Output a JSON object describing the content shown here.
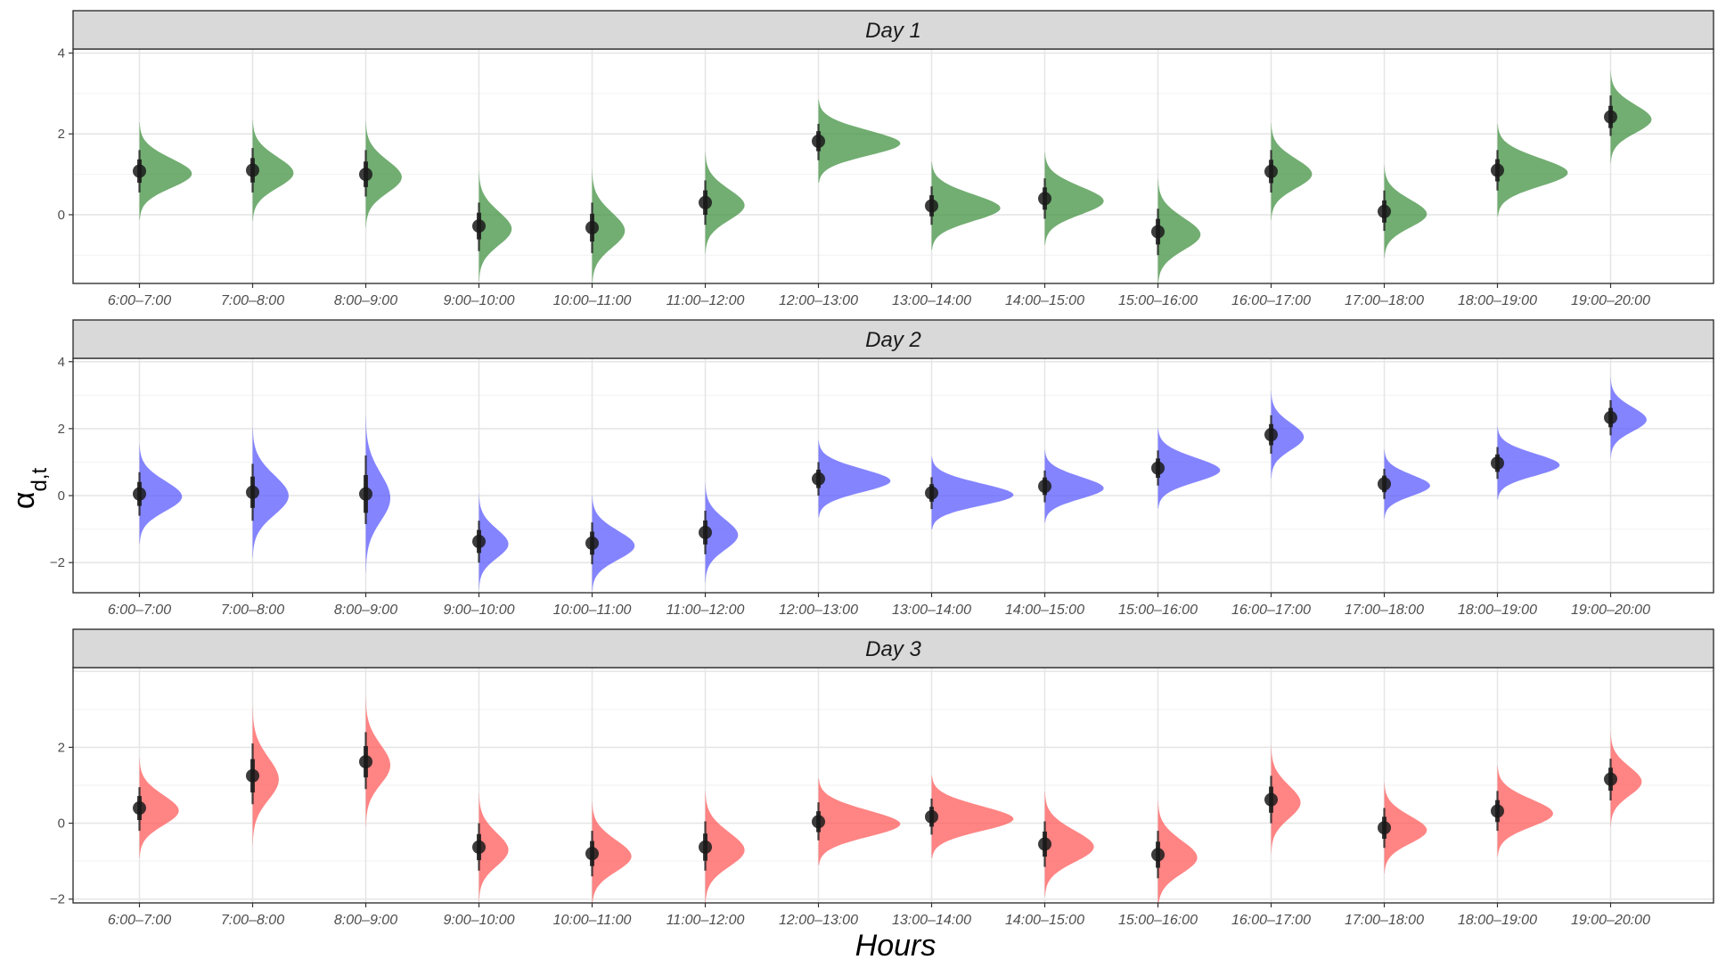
{
  "chart_data": {
    "type": "half-violin",
    "xlabel": "Hours",
    "ylabel": {
      "base": "α",
      "subscript": "d,t"
    },
    "categories": [
      "6:00–7:00",
      "7:00–8:00",
      "8:00–9:00",
      "9:00–10:00",
      "10:00–11:00",
      "11:00–12:00",
      "12:00–13:00",
      "13:00–14:00",
      "14:00–15:00",
      "15:00–16:00",
      "16:00–17:00",
      "17:00–18:00",
      "18:00–19:00",
      "19:00–20:00"
    ],
    "panels": [
      {
        "title": "Day 1",
        "color": "#3c8d3c",
        "ylim": [
          -1.7,
          4.1
        ],
        "yticks": [
          0,
          2,
          4
        ],
        "means": [
          1.08,
          1.1,
          1.0,
          -0.28,
          -0.32,
          0.3,
          1.82,
          0.22,
          0.4,
          -0.42,
          1.07,
          0.08,
          1.1,
          2.42
        ],
        "intervals": [
          [
            0.55,
            1.6
          ],
          [
            0.55,
            1.65
          ],
          [
            0.45,
            1.6
          ],
          [
            -0.9,
            0.3
          ],
          [
            -0.95,
            0.3
          ],
          [
            -0.25,
            0.85
          ],
          [
            1.35,
            2.25
          ],
          [
            -0.25,
            0.7
          ],
          [
            -0.1,
            0.9
          ],
          [
            -1.0,
            0.15
          ],
          [
            0.55,
            1.6
          ],
          [
            -0.4,
            0.6
          ],
          [
            0.6,
            1.6
          ],
          [
            1.95,
            2.95
          ]
        ],
        "widths": [
          1.6,
          1.25,
          1.1,
          1.0,
          1.0,
          1.2,
          2.5,
          2.1,
          1.8,
          1.3,
          1.25,
          1.3,
          2.15,
          1.25
        ]
      },
      {
        "title": "Day 2",
        "color": "#5555ff",
        "ylim": [
          -2.9,
          4.1
        ],
        "yticks": [
          -2,
          0,
          2,
          4
        ],
        "means": [
          0.05,
          0.1,
          0.05,
          -1.37,
          -1.42,
          -1.1,
          0.5,
          0.08,
          0.28,
          0.82,
          1.82,
          0.35,
          0.97,
          2.33
        ],
        "intervals": [
          [
            -0.6,
            0.7
          ],
          [
            -0.75,
            0.95
          ],
          [
            -0.85,
            1.2
          ],
          [
            -2.0,
            -0.75
          ],
          [
            -2.05,
            -0.8
          ],
          [
            -1.75,
            -0.45
          ],
          [
            0.0,
            1.0
          ],
          [
            -0.4,
            0.55
          ],
          [
            -0.2,
            0.75
          ],
          [
            0.3,
            1.35
          ],
          [
            1.25,
            2.4
          ],
          [
            -0.1,
            0.8
          ],
          [
            0.5,
            1.45
          ],
          [
            1.8,
            2.85
          ]
        ],
        "widths": [
          1.3,
          1.1,
          0.75,
          0.9,
          1.3,
          1.0,
          2.2,
          2.5,
          1.8,
          1.9,
          1.0,
          1.4,
          1.9,
          1.1
        ]
      },
      {
        "title": "Day 3",
        "color": "#ff5555",
        "ylim": [
          -2.1,
          4.1
        ],
        "yticks": [
          -2,
          0,
          2
        ],
        "means": [
          0.4,
          1.25,
          1.62,
          -0.63,
          -0.8,
          -0.63,
          0.04,
          0.17,
          -0.55,
          -0.83,
          0.62,
          -0.12,
          0.32,
          1.16
        ],
        "intervals": [
          [
            -0.2,
            0.95
          ],
          [
            0.5,
            2.1
          ],
          [
            0.9,
            2.4
          ],
          [
            -1.25,
            0.0
          ],
          [
            -1.4,
            -0.2
          ],
          [
            -1.25,
            0.05
          ],
          [
            -0.45,
            0.55
          ],
          [
            -0.3,
            0.65
          ],
          [
            -1.15,
            0.05
          ],
          [
            -1.45,
            -0.2
          ],
          [
            0.0,
            1.25
          ],
          [
            -0.65,
            0.4
          ],
          [
            -0.2,
            0.85
          ],
          [
            0.6,
            1.7
          ]
        ],
        "widths": [
          1.2,
          0.8,
          0.75,
          0.9,
          1.2,
          1.2,
          2.5,
          2.5,
          1.5,
          1.2,
          0.9,
          1.3,
          1.7,
          0.95
        ]
      }
    ]
  }
}
